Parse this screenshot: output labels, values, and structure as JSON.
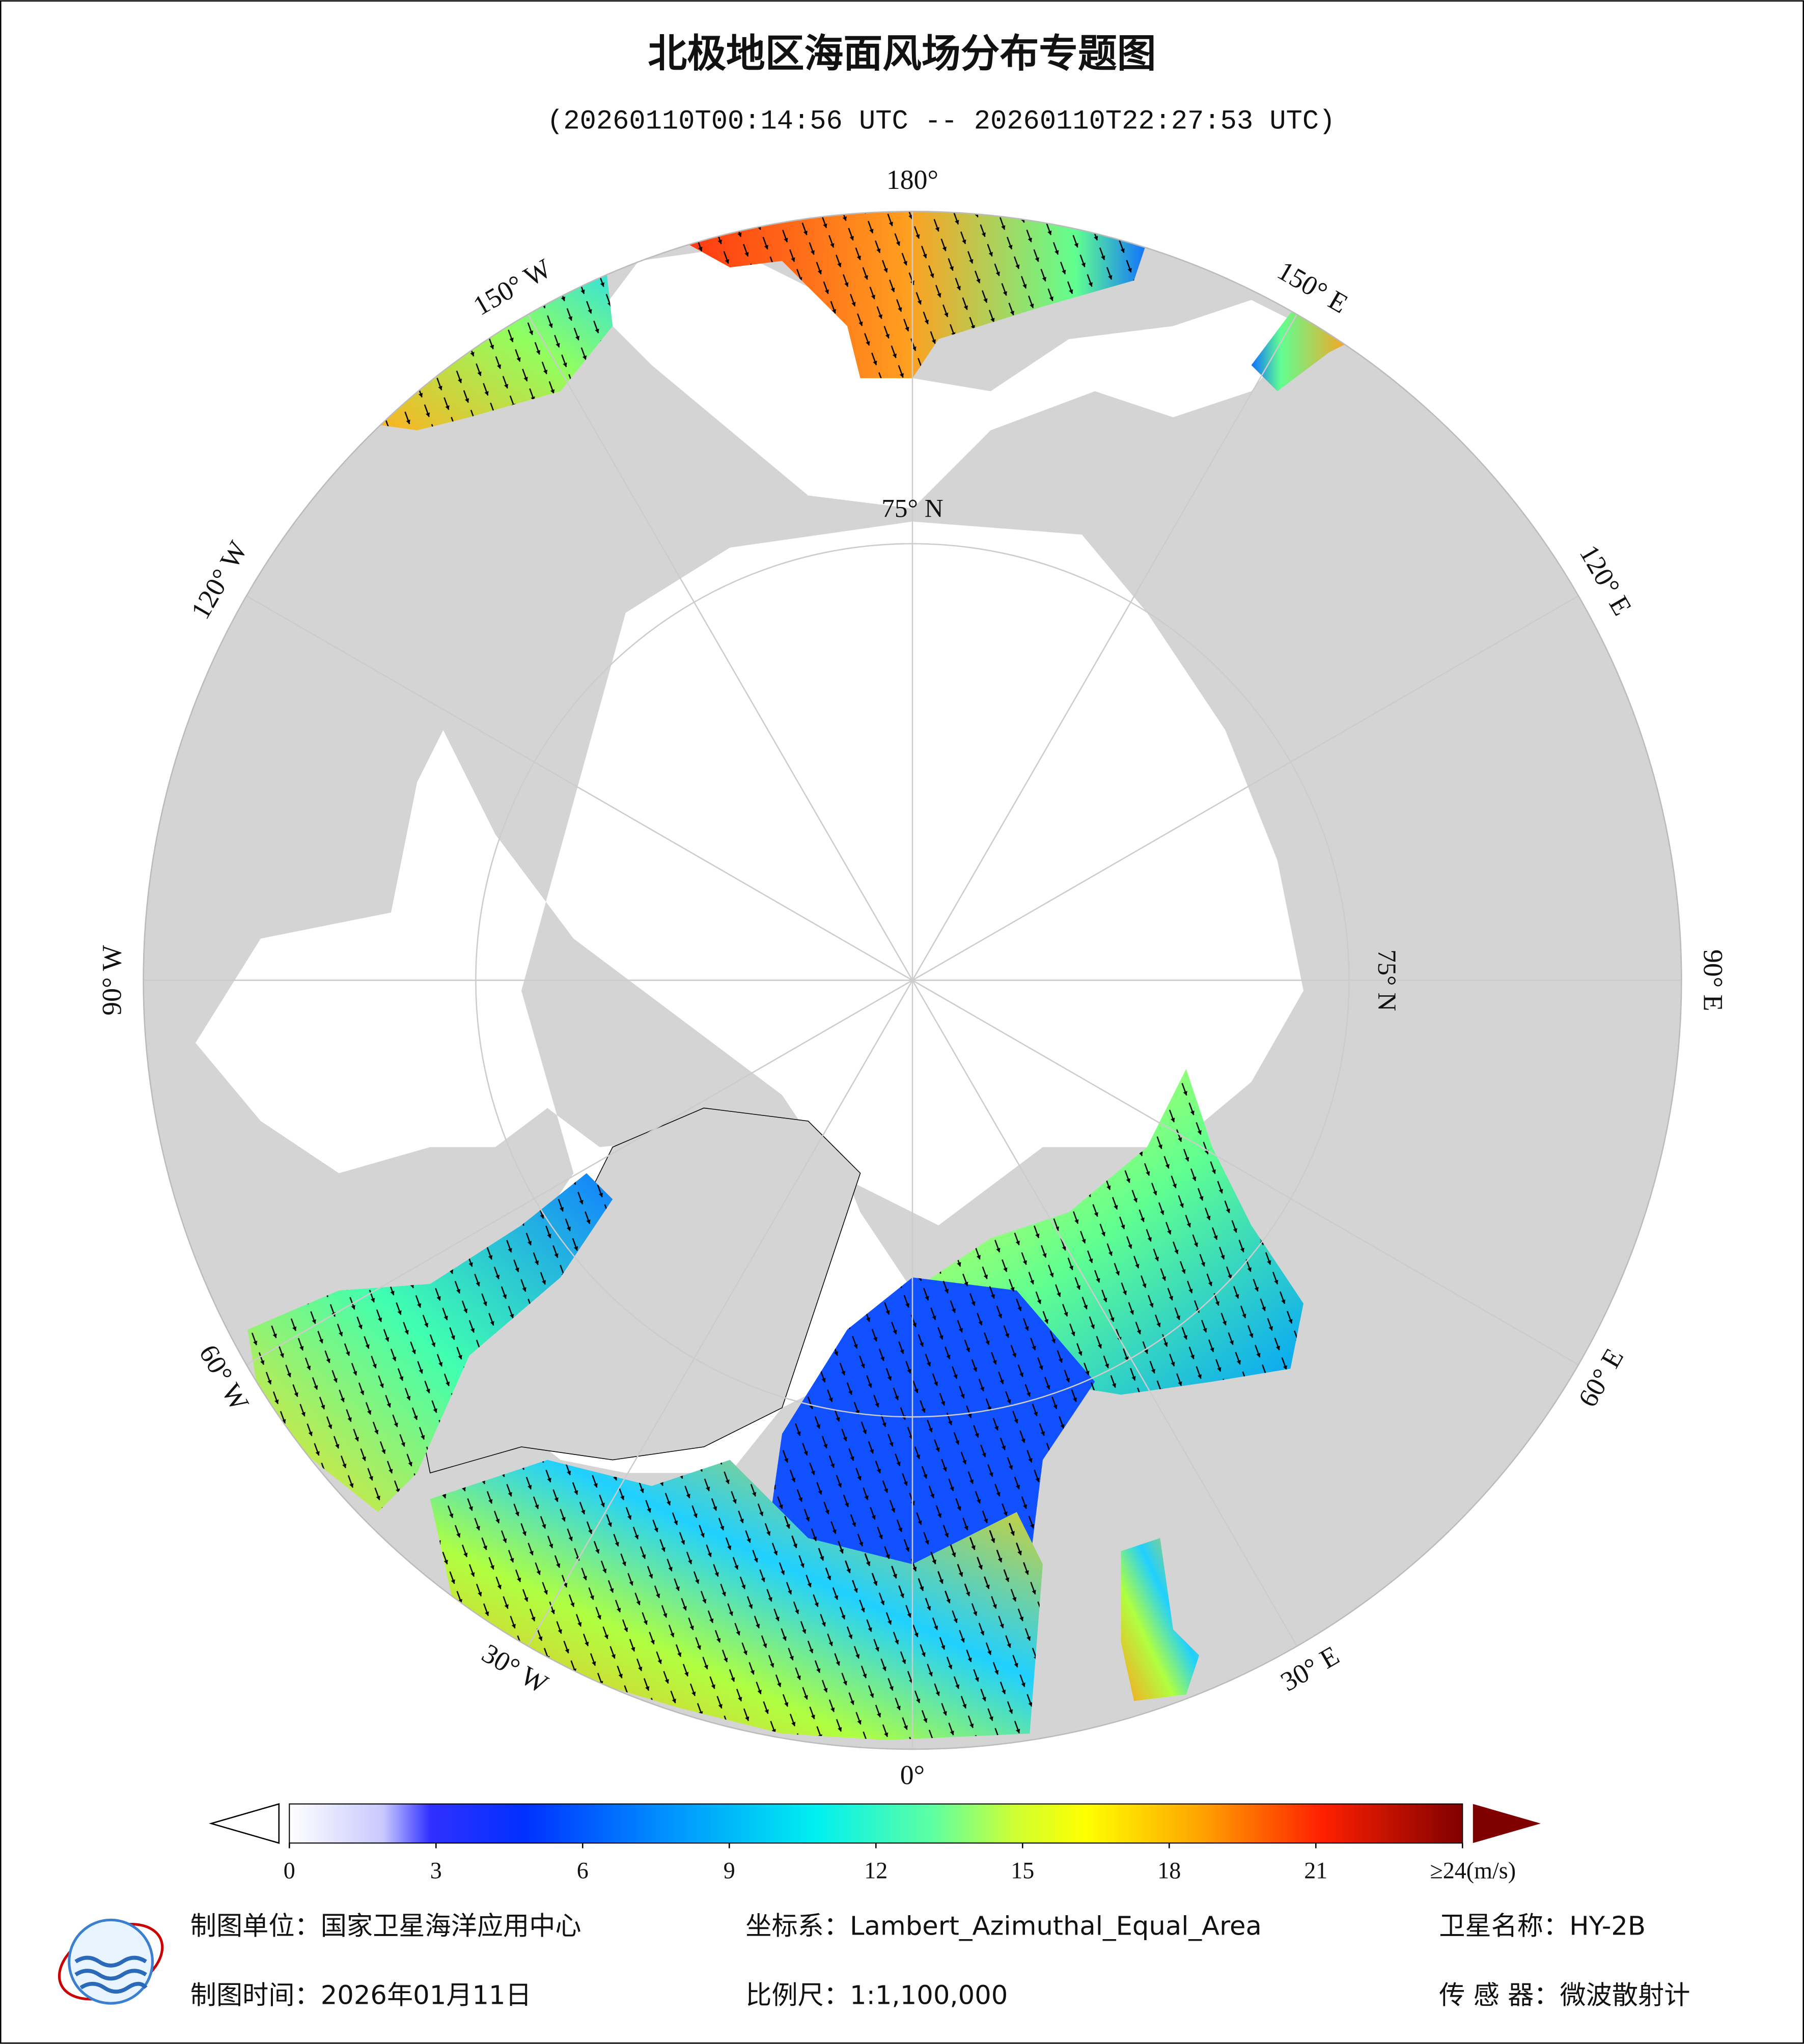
{
  "header": {
    "title": "北极地区海面风场分布专题图",
    "subtitle": "(20260110T00:14:56 UTC -- 20260110T22:27:53 UTC)"
  },
  "map": {
    "longitude_labels": [
      "0°",
      "30° E",
      "60° E",
      "90° E",
      "120° E",
      "150° E",
      "180°",
      "150° W",
      "120° W",
      "90° W",
      "60° W",
      "30° W"
    ],
    "latitude_label": "75° N"
  },
  "colorbar": {
    "ticks": [
      0,
      3,
      6,
      9,
      12,
      15,
      18,
      21,
      {
        "value": 24,
        "label": "≥24(m/s)"
      }
    ]
  },
  "footer": {
    "organization": "制图单位：国家卫星海洋应用中心",
    "coordinate_system": "坐标系：Lambert_Azimuthal_Equal_Area",
    "satellite": "卫星名称：HY-2B",
    "date": "制图时间：2026年01月11日",
    "scale": "比例尺：1:1,100,000",
    "sensor": "传 感 器：微波散射计"
  }
}
